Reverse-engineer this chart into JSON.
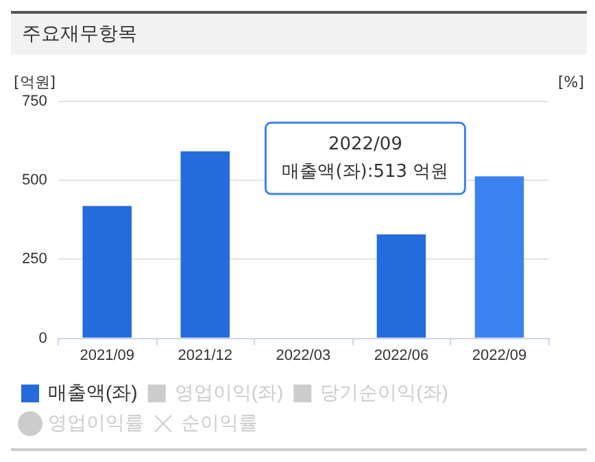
{
  "chart_data": {
    "type": "bar",
    "title": "주요재무항목",
    "ylabel": "[억원]",
    "y2label": "[%]",
    "categories": [
      "2021/09",
      "2021/12",
      "2022/03",
      "2022/06",
      "2022/09"
    ],
    "series": [
      {
        "name": "매출액(좌)",
        "color": "#246bdb",
        "colors": [
          "#246bdb",
          "#246bdb",
          "#246bdb",
          "#246bdb",
          "#3b82f0"
        ],
        "values": [
          419,
          592,
          null,
          329,
          513
        ]
      },
      {
        "name": "영업이익(좌)",
        "color": "#cccccc",
        "values": [
          null,
          null,
          null,
          null,
          null
        ]
      },
      {
        "name": "당기순이익(좌)",
        "color": "#cccccc",
        "values": [
          null,
          null,
          null,
          null,
          null
        ]
      },
      {
        "name": "영업이익률",
        "type": "line",
        "axis": "y2",
        "marker": "circle",
        "color": "#cccccc",
        "values": [
          null,
          null,
          null,
          null,
          null
        ]
      },
      {
        "name": "순이익률",
        "type": "line",
        "axis": "y2",
        "marker": "star",
        "color": "#cccccc",
        "values": [
          null,
          null,
          null,
          null,
          null
        ]
      }
    ],
    "ylim": [
      0,
      750
    ],
    "yticks": [
      0,
      250,
      500,
      750
    ],
    "grid": "y",
    "legend": "bottom left",
    "annotations": [
      "2022/09",
      "매출액(좌):513 억원"
    ]
  }
}
